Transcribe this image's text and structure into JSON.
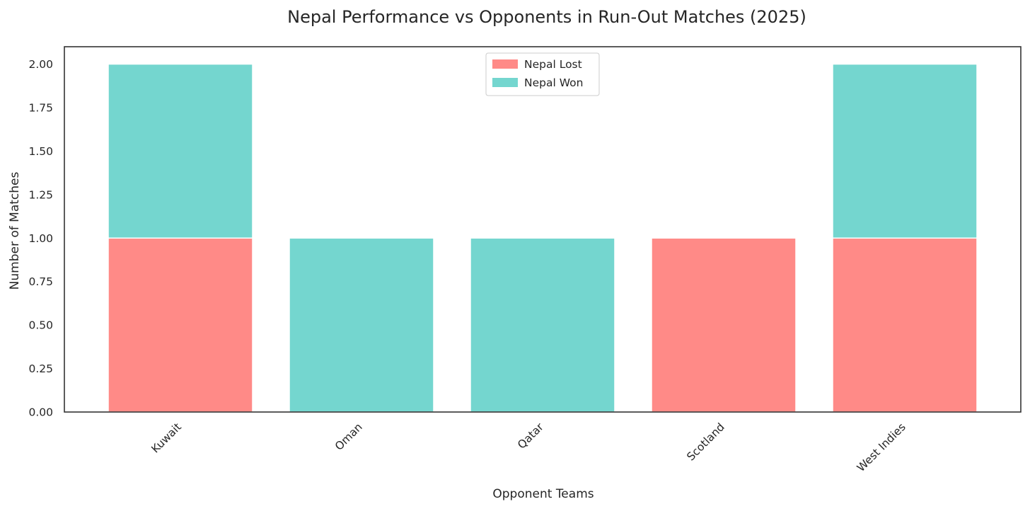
{
  "chart_data": {
    "type": "bar",
    "stacked": true,
    "title": "Nepal Performance vs Opponents in Run-Out Matches (2025)",
    "xlabel": "Opponent Teams",
    "ylabel": "Number of Matches",
    "categories": [
      "Kuwait",
      "Oman",
      "Qatar",
      "Scotland",
      "West Indies"
    ],
    "series": [
      {
        "name": "Nepal Lost",
        "values": [
          1,
          0,
          0,
          1,
          1
        ],
        "color": "#ff8a87"
      },
      {
        "name": "Nepal Won",
        "values": [
          1,
          1,
          1,
          0,
          1
        ],
        "color": "#74d6cf"
      }
    ],
    "ylim": [
      0,
      2.1
    ],
    "yticks": [
      "0.00",
      "0.25",
      "0.50",
      "0.75",
      "1.00",
      "1.25",
      "1.50",
      "1.75",
      "2.00"
    ],
    "grid": false,
    "legend_position": "top-center"
  }
}
